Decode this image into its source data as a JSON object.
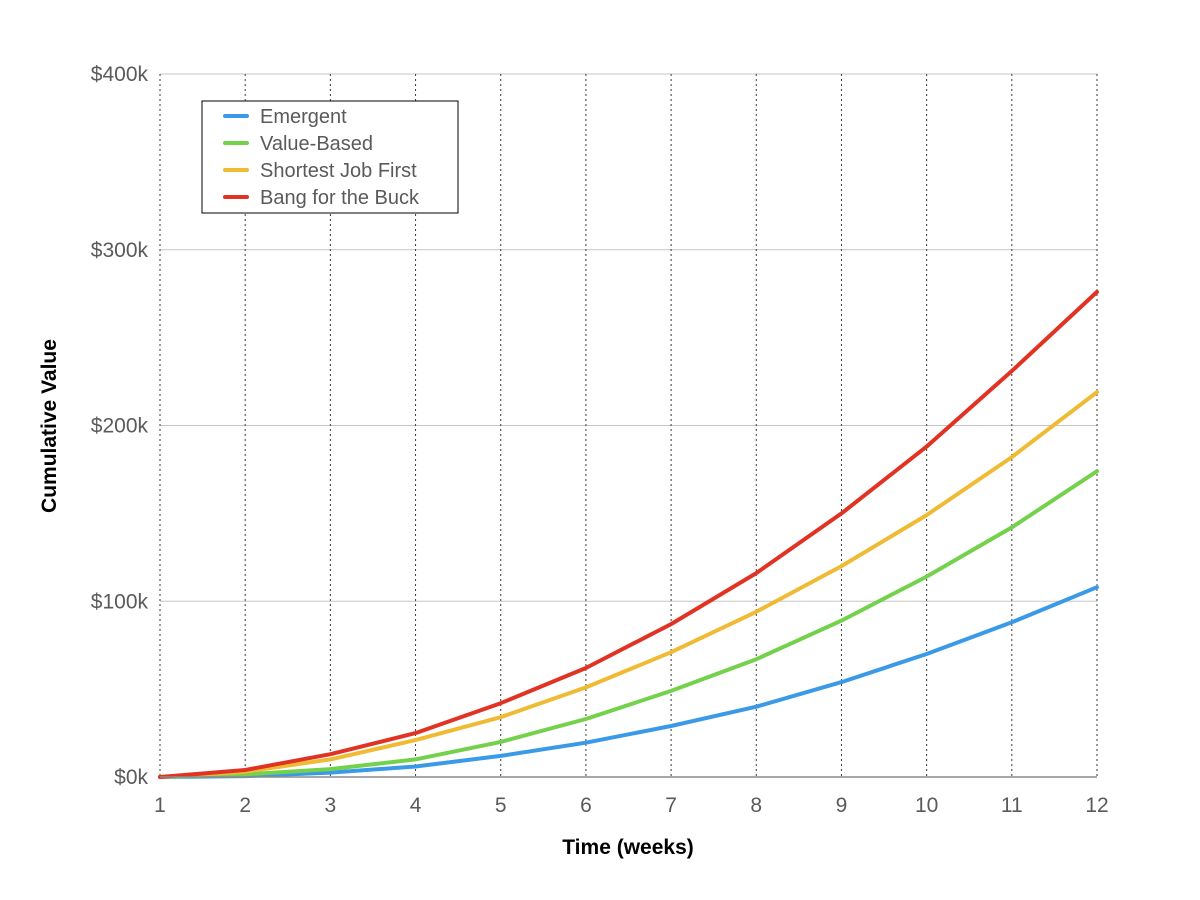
{
  "chart_data": {
    "type": "line",
    "xlabel": "Time (weeks)",
    "ylabel": "Cumulative Value",
    "x": [
      1,
      2,
      3,
      4,
      5,
      6,
      7,
      8,
      9,
      10,
      11,
      12
    ],
    "x_tick_labels": [
      "1",
      "2",
      "3",
      "4",
      "5",
      "6",
      "7",
      "8",
      "9",
      "10",
      "11",
      "12"
    ],
    "y_ticks": [
      0,
      100000,
      200000,
      300000,
      400000
    ],
    "y_tick_labels": [
      "$0k",
      "$100k",
      "$200k",
      "$300k",
      "$400k"
    ],
    "xlim": [
      1,
      12
    ],
    "ylim": [
      0,
      400000
    ],
    "grid": {
      "horizontal": "solid",
      "vertical": "dotted"
    },
    "legend_position": "top-left",
    "series": [
      {
        "name": "Emergent",
        "color": "#3b9ae8",
        "values": [
          0,
          500,
          2500,
          6000,
          12000,
          19500,
          29000,
          40000,
          54000,
          70000,
          88000,
          108000
        ]
      },
      {
        "name": "Value-Based",
        "color": "#74d14c",
        "values": [
          0,
          1500,
          4500,
          10000,
          20000,
          33000,
          49000,
          67000,
          89000,
          114000,
          142000,
          174000
        ]
      },
      {
        "name": "Shortest Job First",
        "color": "#efbb35",
        "values": [
          0,
          3000,
          10000,
          21000,
          34000,
          51000,
          71000,
          94000,
          120000,
          149000,
          182000,
          219000
        ]
      },
      {
        "name": "Bang for the Buck",
        "color": "#e03324",
        "values": [
          0,
          4000,
          13000,
          25000,
          42000,
          62000,
          87000,
          116000,
          150000,
          188000,
          231000,
          276000
        ]
      }
    ]
  }
}
